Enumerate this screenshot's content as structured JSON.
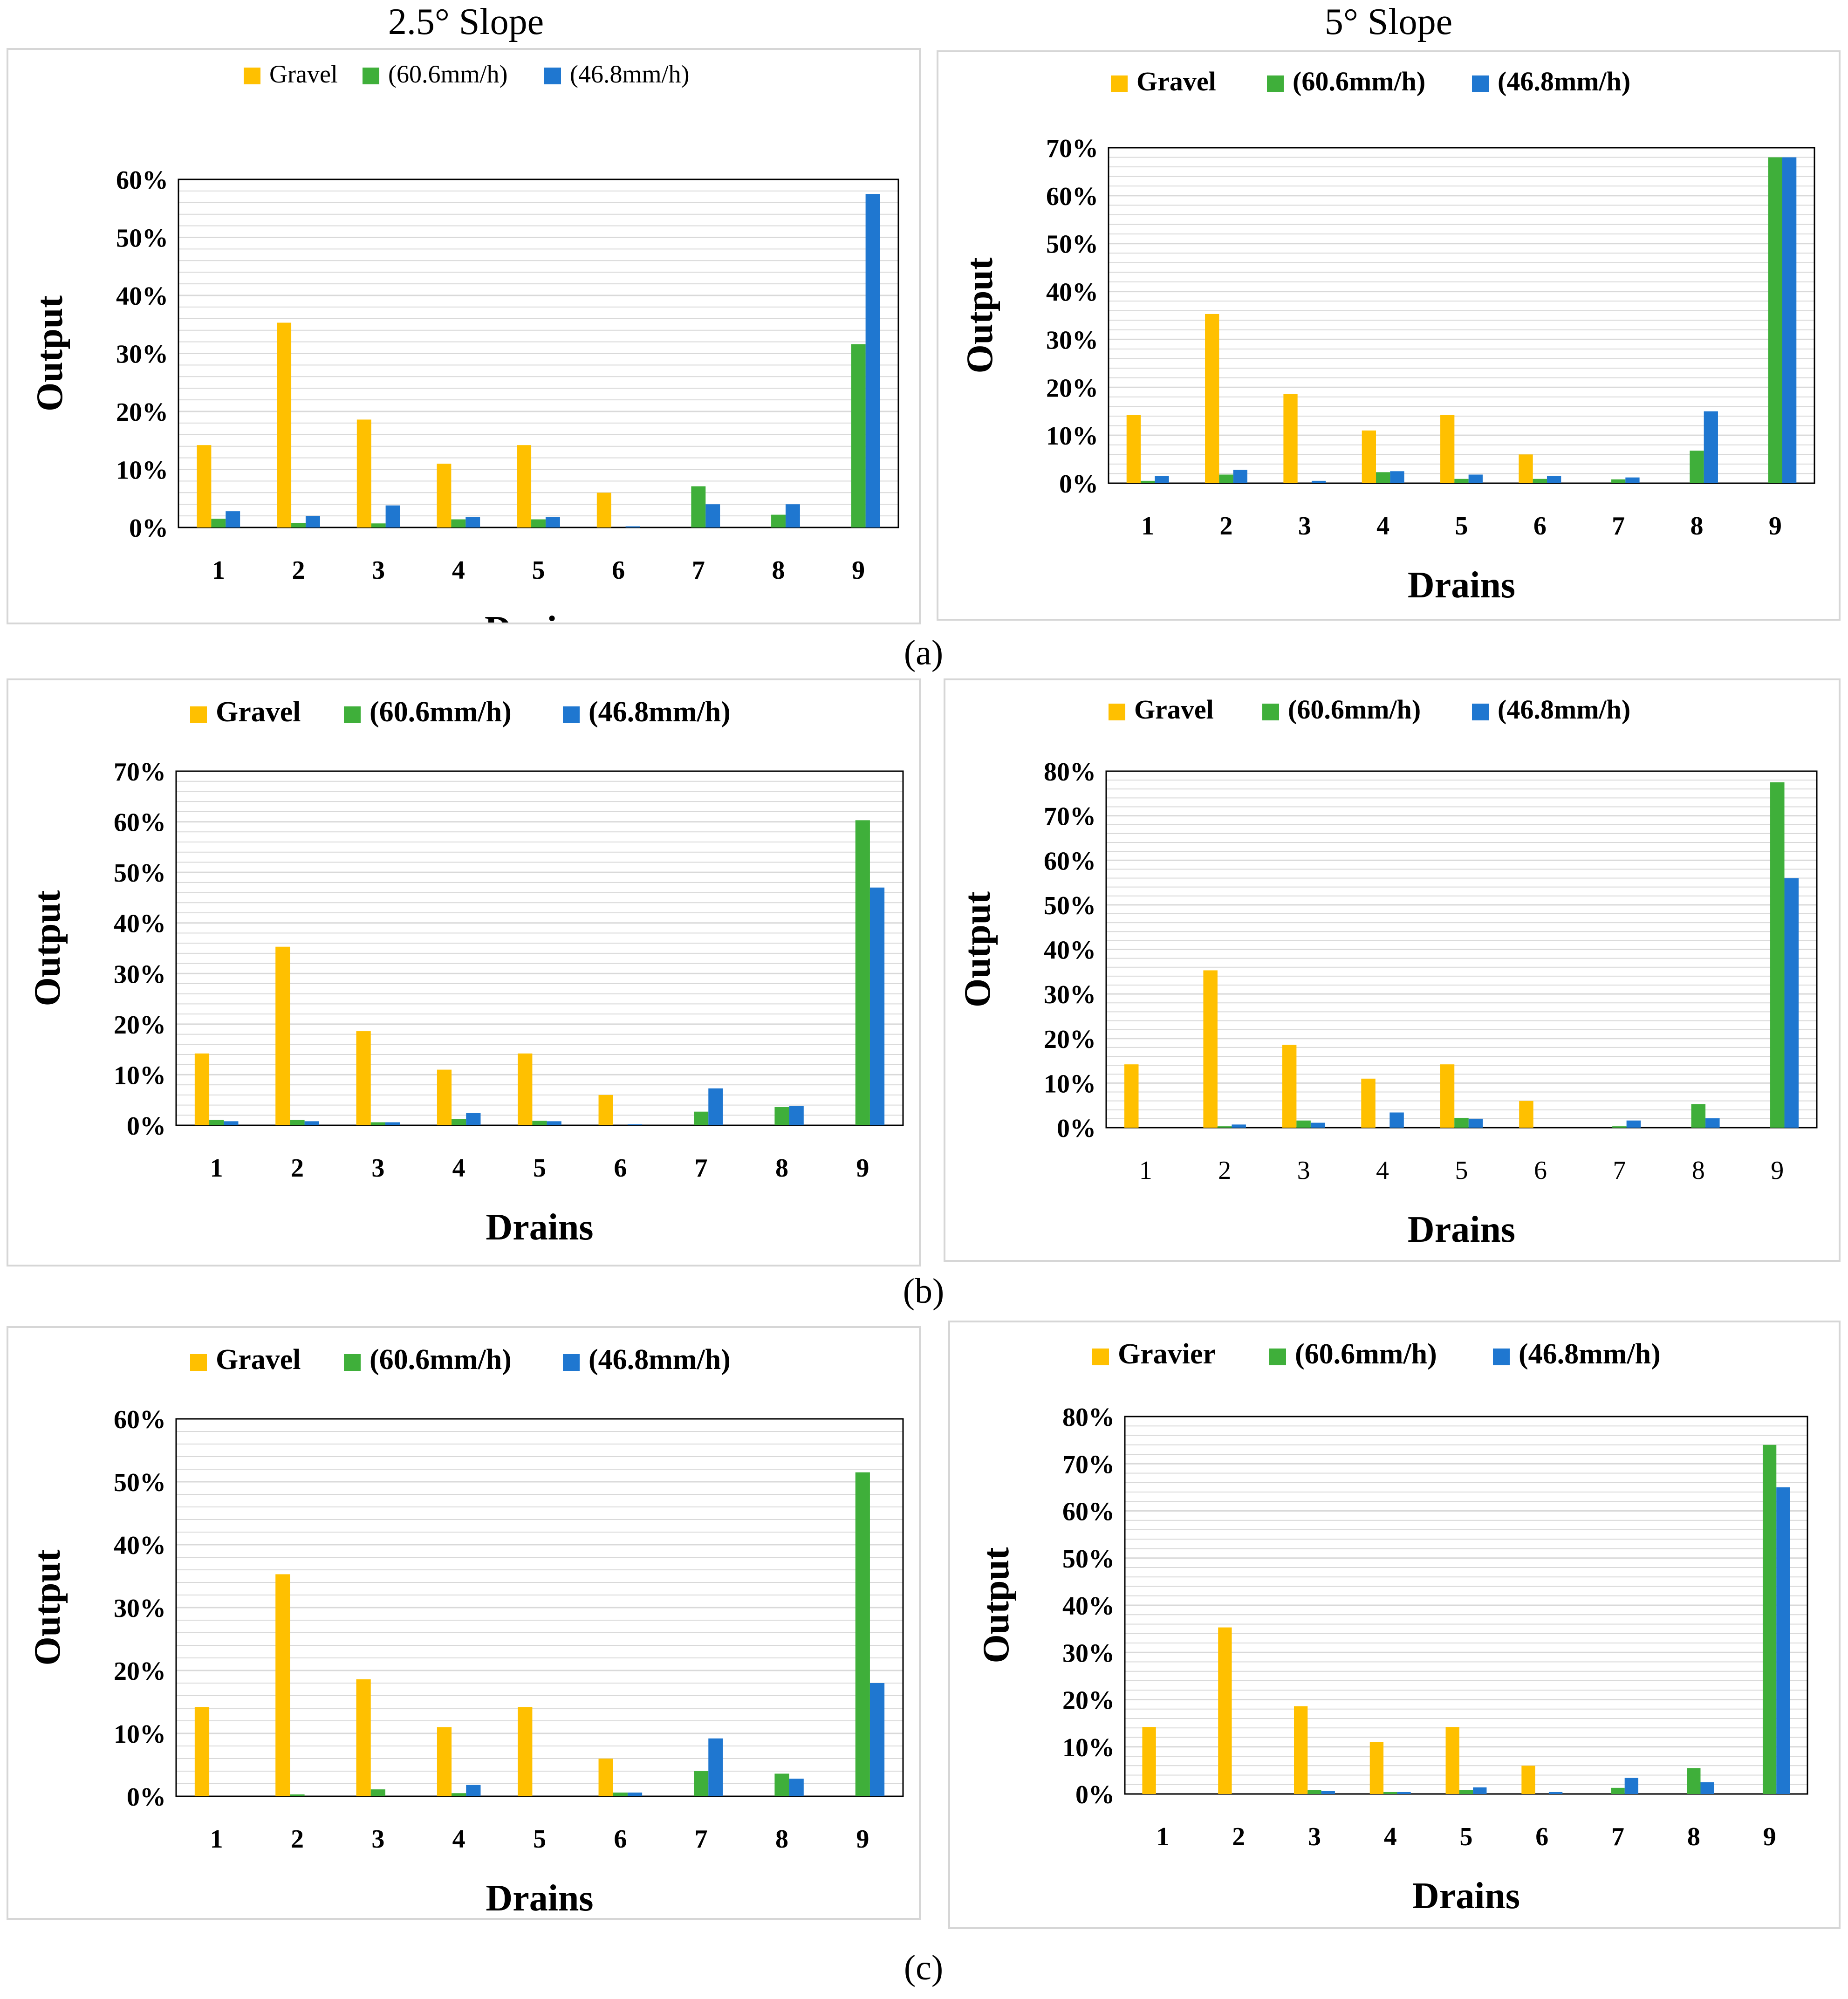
{
  "column_titles": {
    "left": "2.5° Slope",
    "right": "5° Slope"
  },
  "row_labels": [
    "(a)",
    "(b)",
    "(c)"
  ],
  "colors": {
    "gravel": "#FFC000",
    "green": "#3FAF3A",
    "blue": "#1F77D0",
    "grid": "#d9d9d9"
  },
  "chart_data": [
    {
      "type": "bar",
      "id": "a-left",
      "legend": [
        "Gravel",
        "(60.6mm/h)",
        "(46.8mm/h)"
      ],
      "categories": [
        "1",
        "2",
        "3",
        "4",
        "5",
        "6",
        "7",
        "8",
        "9"
      ],
      "series": [
        {
          "name": "Gravel",
          "values": [
            14.2,
            35.3,
            18.6,
            11.0,
            14.2,
            6.0,
            0,
            0,
            0
          ]
        },
        {
          "name": "(60.6mm/h)",
          "values": [
            1.5,
            0.8,
            0.7,
            1.4,
            1.4,
            0,
            7.1,
            2.2,
            31.6
          ]
        },
        {
          "name": "(46.8mm/h)",
          "values": [
            2.8,
            2.0,
            3.8,
            1.8,
            1.8,
            0.2,
            4.0,
            4.0,
            57.5
          ]
        }
      ],
      "xlabel": "Drains",
      "ylabel": "Output",
      "ylim": [
        0,
        60
      ],
      "yticks": [
        "0%",
        "10%",
        "20%",
        "30%",
        "40%",
        "50%",
        "60%"
      ]
    },
    {
      "type": "bar",
      "id": "a-right",
      "legend": [
        "Gravel",
        "(60.6mm/h)",
        "(46.8mm/h)"
      ],
      "categories": [
        "1",
        "2",
        "3",
        "4",
        "5",
        "6",
        "7",
        "8",
        "9"
      ],
      "series": [
        {
          "name": "Gravel",
          "values": [
            14.2,
            35.3,
            18.6,
            11.0,
            14.2,
            6.0,
            0,
            0,
            0
          ]
        },
        {
          "name": "(60.6mm/h)",
          "values": [
            0.5,
            1.8,
            0,
            2.3,
            0.9,
            0.9,
            0.8,
            6.8,
            68.0
          ]
        },
        {
          "name": "(46.8mm/h)",
          "values": [
            1.5,
            2.8,
            0.5,
            2.5,
            1.8,
            1.5,
            1.2,
            15.0,
            68.0
          ]
        }
      ],
      "xlabel": "Drains",
      "ylabel": "Output",
      "ylim": [
        0,
        70
      ],
      "yticks": [
        "0%",
        "10%",
        "20%",
        "30%",
        "40%",
        "50%",
        "60%",
        "70%"
      ]
    },
    {
      "type": "bar",
      "id": "b-left",
      "legend": [
        "Gravel",
        "(60.6mm/h)",
        "(46.8mm/h)"
      ],
      "categories": [
        "1",
        "2",
        "3",
        "4",
        "5",
        "6",
        "7",
        "8",
        "9"
      ],
      "series": [
        {
          "name": "Gravel",
          "values": [
            14.2,
            35.3,
            18.6,
            11.0,
            14.2,
            6.0,
            0,
            0,
            0
          ]
        },
        {
          "name": "(60.6mm/h)",
          "values": [
            1.1,
            1.1,
            0.6,
            1.2,
            0.9,
            0,
            2.7,
            3.6,
            60.3
          ]
        },
        {
          "name": "(46.8mm/h)",
          "values": [
            0.8,
            0.8,
            0.6,
            2.4,
            0.8,
            0.2,
            7.3,
            3.8,
            47.0
          ]
        }
      ],
      "xlabel": "Drains",
      "ylabel": "Output",
      "ylim": [
        0,
        70
      ],
      "yticks": [
        "0%",
        "10%",
        "20%",
        "30%",
        "40%",
        "50%",
        "60%",
        "70%"
      ]
    },
    {
      "type": "bar",
      "id": "b-right",
      "legend": [
        "Gravel",
        "(60.6mm/h)",
        "(46.8mm/h)"
      ],
      "categories": [
        "1",
        "2",
        "3",
        "4",
        "5",
        "6",
        "7",
        "8",
        "9"
      ],
      "series": [
        {
          "name": "Gravel",
          "values": [
            14.2,
            35.3,
            18.6,
            11.0,
            14.2,
            6.0,
            0,
            0,
            0
          ]
        },
        {
          "name": "(60.6mm/h)",
          "values": [
            0,
            0.3,
            1.6,
            0,
            2.2,
            0,
            0.3,
            5.3,
            77.5
          ]
        },
        {
          "name": "(46.8mm/h)",
          "values": [
            0,
            0.7,
            1.1,
            3.4,
            2.0,
            0,
            1.6,
            2.1,
            56.0
          ]
        }
      ],
      "xlabel": "Drains",
      "ylabel": "Output",
      "ylim": [
        0,
        80
      ],
      "yticks": [
        "0%",
        "10%",
        "20%",
        "30%",
        "40%",
        "50%",
        "60%",
        "70%",
        "80%"
      ]
    },
    {
      "type": "bar",
      "id": "c-left",
      "legend": [
        "Gravel",
        "(60.6mm/h)",
        "(46.8mm/h)"
      ],
      "categories": [
        "1",
        "2",
        "3",
        "4",
        "5",
        "6",
        "7",
        "8",
        "9"
      ],
      "series": [
        {
          "name": "Gravel",
          "values": [
            14.2,
            35.3,
            18.6,
            11.0,
            14.2,
            6.0,
            0,
            0,
            0
          ]
        },
        {
          "name": "(60.6mm/h)",
          "values": [
            0,
            0.3,
            1.1,
            0.5,
            0,
            0.6,
            4.0,
            3.6,
            51.5
          ]
        },
        {
          "name": "(46.8mm/h)",
          "values": [
            0,
            0,
            0,
            1.8,
            0,
            0.6,
            9.2,
            2.8,
            18.0
          ]
        }
      ],
      "xlabel": "Drains",
      "ylabel": "Output",
      "ylim": [
        0,
        60
      ],
      "yticks": [
        "0%",
        "10%",
        "20%",
        "30%",
        "40%",
        "50%",
        "60%"
      ]
    },
    {
      "type": "bar",
      "id": "c-right",
      "legend": [
        "Gravier",
        "(60.6mm/h)",
        "(46.8mm/h)"
      ],
      "categories": [
        "1",
        "2",
        "3",
        "4",
        "5",
        "6",
        "7",
        "8",
        "9"
      ],
      "series": [
        {
          "name": "Gravier",
          "values": [
            14.2,
            35.3,
            18.6,
            11.0,
            14.2,
            6.0,
            0,
            0,
            0
          ]
        },
        {
          "name": "(60.6mm/h)",
          "values": [
            0,
            0,
            0.8,
            0.4,
            0.8,
            0,
            1.3,
            5.5,
            74.0
          ]
        },
        {
          "name": "(46.8mm/h)",
          "values": [
            0,
            0,
            0.6,
            0.4,
            1.4,
            0.4,
            3.4,
            2.5,
            65.0
          ]
        }
      ],
      "xlabel": "Drains",
      "ylabel": "Output",
      "ylim": [
        0,
        80
      ],
      "yticks": [
        "0%",
        "10%",
        "20%",
        "30%",
        "40%",
        "50%",
        "60%",
        "70%",
        "80%"
      ]
    }
  ]
}
